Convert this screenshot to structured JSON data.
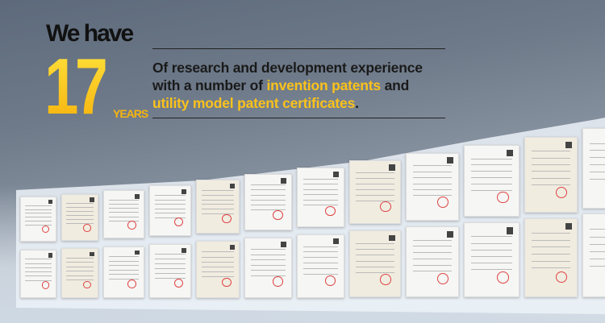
{
  "banner": {
    "headline": "We have",
    "number": "17",
    "unit": "YEARS",
    "desc_line1": "Of research and development experience",
    "desc_line2_pre": "with a number of ",
    "desc_line2_hl": "invention patents",
    "desc_line2_post": " and",
    "desc_line3_hl": "utility model patent certificates",
    "desc_line3_post": ".",
    "accent_color": "#fbc21b"
  },
  "certificates": {
    "rows": 2,
    "columns": 12,
    "icon": "patent-certificate"
  }
}
